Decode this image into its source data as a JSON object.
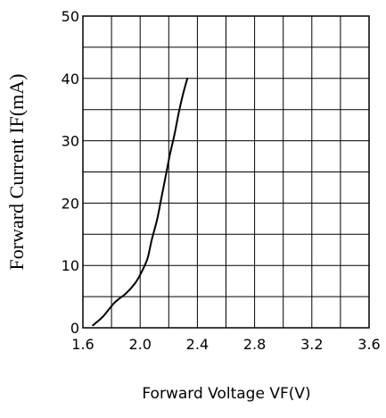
{
  "chart_data": {
    "type": "line",
    "title": "",
    "xlabel": "Forward Voltage VF(V)",
    "ylabel": "Forward Current IF(mA)",
    "xlim": [
      1.6,
      3.6
    ],
    "ylim": [
      0,
      50
    ],
    "x_ticks": [
      1.6,
      2.0,
      2.4,
      2.8,
      3.2,
      3.6
    ],
    "x_tick_labels": [
      "1.6",
      "2.0",
      "2.4",
      "2.8",
      "3.2",
      "3.6"
    ],
    "y_ticks": [
      0,
      10,
      20,
      30,
      40,
      50
    ],
    "y_tick_labels": [
      "0",
      "10",
      "20",
      "30",
      "40",
      "50"
    ],
    "grid": true,
    "grid_x_step": 0.2,
    "grid_y_step": 5,
    "legend": "none",
    "series": [
      {
        "color": "#000000",
        "x": [
          1.67,
          1.74,
          1.82,
          1.9,
          1.96,
          2.0,
          2.05,
          2.08,
          2.12,
          2.15,
          2.18,
          2.21,
          2.24,
          2.27,
          2.3,
          2.33
        ],
        "y": [
          0.4,
          1.8,
          4.0,
          5.5,
          7.0,
          8.5,
          11.0,
          14.0,
          17.5,
          21.0,
          24.5,
          28.0,
          31.0,
          34.5,
          37.5,
          40.0
        ]
      }
    ]
  }
}
